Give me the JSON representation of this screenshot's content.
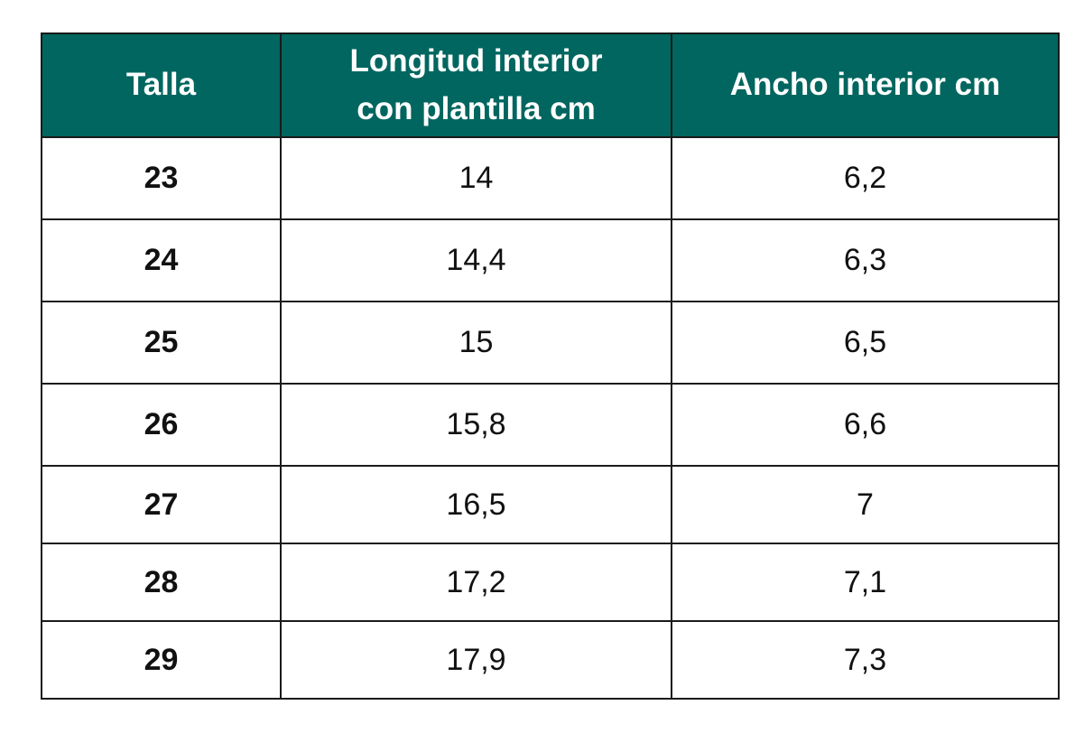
{
  "table": {
    "header": [
      "Talla",
      "Longitud interior con plantilla cm",
      "Ancho interior cm"
    ],
    "rows": [
      [
        "23",
        "14",
        "6,2"
      ],
      [
        "24",
        "14,4",
        "6,3"
      ],
      [
        "25",
        "15",
        "6,5"
      ],
      [
        "26",
        "15,8",
        "6,6"
      ],
      [
        "27",
        "16,5",
        "7"
      ],
      [
        "28",
        "17,2",
        "7,1"
      ],
      [
        "29",
        "17,9",
        "7,3"
      ]
    ]
  }
}
